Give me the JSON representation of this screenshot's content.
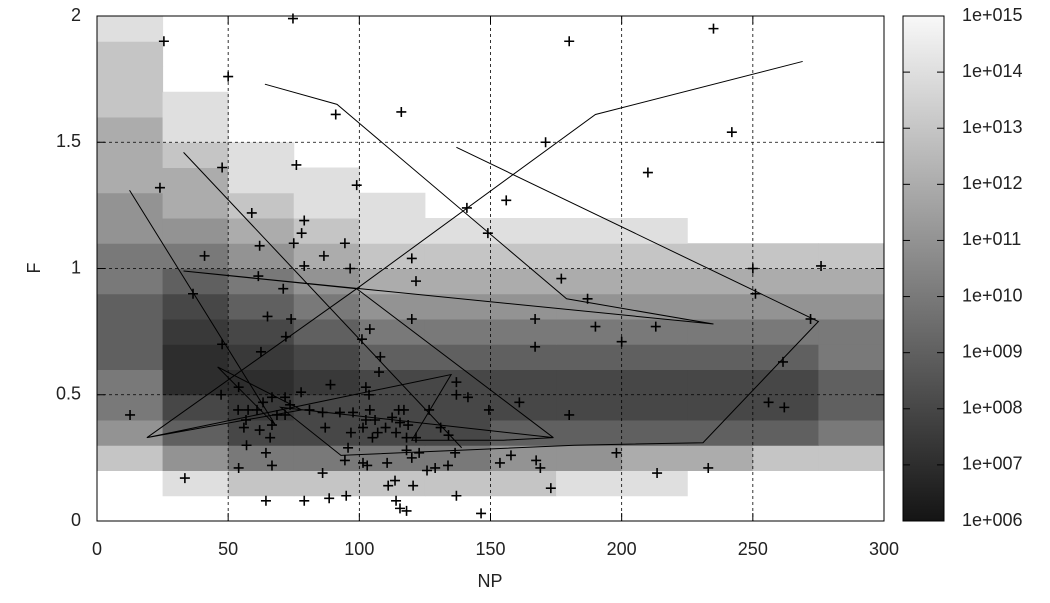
{
  "chart_data": {
    "type": "heatmap",
    "x_label": "NP",
    "y_label": "F",
    "xlim": [
      0,
      300
    ],
    "ylim": [
      0,
      2
    ],
    "xticks": [
      0,
      50,
      100,
      150,
      200,
      250,
      300
    ],
    "yticks": [
      0,
      0.5,
      1,
      1.5,
      2
    ],
    "grid": true,
    "log_color_scale": true,
    "cblim": [
      1000000.0,
      1000000000000000.0
    ],
    "cbticks": [
      {
        "value": 1000000.0,
        "label": "1e+006"
      },
      {
        "value": 10000000.0,
        "label": "1e+007"
      },
      {
        "value": 100000000.0,
        "label": "1e+008"
      },
      {
        "value": 1000000000.0,
        "label": "1e+009"
      },
      {
        "value": 10000000000.0,
        "label": "1e+010"
      },
      {
        "value": 100000000000.0,
        "label": "1e+011"
      },
      {
        "value": 1000000000000.0,
        "label": "1e+012"
      },
      {
        "value": 10000000000000.0,
        "label": "1e+013"
      },
      {
        "value": 100000000000000.0,
        "label": "1e+014"
      },
      {
        "value": 1000000000000000.0,
        "label": "1e+015"
      }
    ],
    "xbins": [
      0,
      25,
      50,
      75,
      100,
      125,
      150,
      175,
      200,
      225,
      250,
      275,
      300
    ],
    "ybins": [
      0,
      0.1,
      0.2,
      0.3,
      0.4,
      0.5,
      0.6,
      0.7,
      0.8,
      0.9,
      1.0,
      1.1,
      1.2,
      1.3,
      1.4,
      1.5,
      1.6,
      1.7,
      1.8,
      1.9,
      2.0
    ],
    "z": [
      [
        null,
        null,
        null,
        null,
        null,
        null,
        null,
        null,
        null,
        null,
        null,
        null
      ],
      [
        null,
        100000000000000.0,
        10000000000000.0,
        10000000000000.0,
        10000000000000.0,
        10000000000000.0,
        10000000000000.0,
        100000000000000.0,
        100000000000000.0,
        null,
        null,
        null
      ],
      [
        10000000000000.0,
        100000000000.0,
        10000000000.0,
        10000000000.0,
        10000000000.0,
        10000000000.0,
        100000000000.0,
        100000000000.0,
        1000000000000.0,
        1000000000000.0,
        10000000000000.0,
        10000000000000.0
      ],
      [
        100000000000.0,
        1000000000.0,
        100000000.0,
        100000000.0,
        100000000.0,
        100000000.0,
        1000000000.0,
        1000000000.0,
        1000000000.0,
        1000000000.0,
        1000000000.0,
        10000000000.0
      ],
      [
        10000000000.0,
        100000000.0,
        30000000.0,
        100000000.0,
        100000000.0,
        100000000.0,
        100000000.0,
        100000000.0,
        100000000.0,
        100000000.0,
        100000000.0,
        1000000000.0
      ],
      [
        10000000000.0,
        10000000.0,
        10000000.0,
        30000000.0,
        100000000.0,
        100000000.0,
        100000000.0,
        100000000.0,
        100000000.0,
        100000000.0,
        100000000.0,
        1000000000.0
      ],
      [
        1000000000.0,
        10000000.0,
        30000000.0,
        100000000.0,
        1000000000.0,
        1000000000.0,
        1000000000.0,
        1000000000.0,
        1000000000.0,
        1000000000.0,
        1000000000.0,
        10000000000.0
      ],
      [
        1000000000.0,
        30000000.0,
        100000000.0,
        1000000000.0,
        10000000000.0,
        10000000000.0,
        10000000000.0,
        10000000000.0,
        10000000000.0,
        10000000000.0,
        10000000000.0,
        10000000000.0
      ],
      [
        1000000000.0,
        100000000.0,
        1000000000.0,
        10000000000.0,
        100000000000.0,
        100000000000.0,
        100000000000.0,
        100000000000.0,
        100000000000.0,
        100000000000.0,
        100000000000.0,
        100000000000.0
      ],
      [
        10000000000.0,
        1000000000.0,
        10000000000.0,
        100000000000.0,
        1000000000000.0,
        1000000000000.0,
        1000000000000.0,
        1000000000000.0,
        1000000000000.0,
        1000000000000.0,
        1000000000000.0,
        1000000000000.0
      ],
      [
        10000000000.0,
        10000000000.0,
        100000000000.0,
        1000000000000.0,
        10000000000000.0,
        10000000000000.0,
        10000000000000.0,
        10000000000000.0,
        10000000000000.0,
        10000000000000.0,
        10000000000000.0,
        10000000000000.0
      ],
      [
        100000000000.0,
        100000000000.0,
        1000000000000.0,
        10000000000000.0,
        100000000000000.0,
        100000000000000.0,
        100000000000000.0,
        100000000000000.0,
        100000000000000.0,
        null,
        null,
        null
      ],
      [
        100000000000.0,
        1000000000000.0,
        10000000000000.0,
        100000000000000.0,
        100000000000000.0,
        null,
        null,
        null,
        null,
        null,
        null,
        null
      ],
      [
        1000000000000.0,
        1000000000000.0,
        100000000000000.0,
        100000000000000.0,
        null,
        null,
        null,
        null,
        null,
        null,
        null,
        null
      ],
      [
        1000000000000.0,
        10000000000000.0,
        100000000000000.0,
        null,
        null,
        null,
        null,
        null,
        null,
        null,
        null,
        null
      ],
      [
        1000000000000.0,
        100000000000000.0,
        null,
        null,
        null,
        null,
        null,
        null,
        null,
        null,
        null,
        null
      ],
      [
        10000000000000.0,
        100000000000000.0,
        null,
        null,
        null,
        null,
        null,
        null,
        null,
        null,
        null,
        null
      ],
      [
        10000000000000.0,
        null,
        null,
        null,
        null,
        null,
        null,
        null,
        null,
        null,
        null,
        null
      ],
      [
        10000000000000.0,
        null,
        null,
        null,
        null,
        null,
        null,
        null,
        null,
        null,
        null,
        null
      ],
      [
        100000000000000.0,
        null,
        null,
        null,
        null,
        null,
        null,
        null,
        null,
        null,
        null,
        null
      ]
    ],
    "overlays": [
      {
        "type": "scatter",
        "marker": "+",
        "color": "#000000",
        "x": [
          25.5,
          74.7,
          180,
          235,
          50,
          91,
          116,
          171,
          242,
          24,
          47.7,
          76,
          99,
          59,
          79,
          78,
          75,
          62,
          94.5,
          141,
          156,
          149,
          210,
          41,
          86.5,
          79,
          120,
          96.5,
          61.5,
          121.6,
          36.6,
          71,
          177,
          187,
          250,
          251,
          276,
          272,
          65,
          74,
          120,
          104,
          167,
          190,
          213,
          101,
          72,
          167,
          200,
          47.7,
          62.5,
          108,
          107.5,
          261.5,
          89,
          77.8,
          137,
          47.3,
          102.5,
          103.7,
          54,
          137,
          149.4,
          161,
          141.4,
          256,
          262,
          12.6,
          180,
          53.8,
          57.6,
          61,
          56.8,
          56,
          63.3,
          66.7,
          71.7,
          73.6,
          68.6,
          66.7,
          62,
          71.7,
          81,
          86,
          92.6,
          97.6,
          87,
          96.8,
          101.4,
          104,
          102.5,
          106,
          107,
          105,
          110,
          112.5,
          115,
          117,
          115.5,
          114,
          118.6,
          118,
          121.6,
          118,
          126.6,
          131,
          134,
          136.5,
          122.8,
          95.7,
          66,
          64.4,
          66.7,
          54,
          57,
          86,
          94.5,
          101.4,
          103,
          110.6,
          120,
          125.8,
          128.9,
          133.8,
          153.6,
          157.8,
          167.4,
          169,
          198,
          233,
          213.5,
          173,
          33.5,
          64.4,
          79,
          88.5,
          95,
          111,
          113.6,
          114,
          115.5,
          118,
          120.5,
          137,
          146.4
        ],
        "y": [
          1.9,
          1.99,
          1.9,
          1.95,
          1.76,
          1.61,
          1.62,
          1.5,
          1.54,
          1.32,
          1.4,
          1.41,
          1.33,
          1.22,
          1.19,
          1.14,
          1.1,
          1.09,
          1.1,
          1.24,
          1.27,
          1.14,
          1.38,
          1.05,
          1.05,
          1.01,
          1.04,
          1.0,
          0.97,
          0.95,
          0.9,
          0.92,
          0.96,
          0.88,
          1.0,
          0.9,
          1.01,
          0.8,
          0.81,
          0.8,
          0.8,
          0.76,
          0.8,
          0.77,
          0.77,
          0.72,
          0.73,
          0.69,
          0.71,
          0.7,
          0.67,
          0.65,
          0.59,
          0.63,
          0.54,
          0.51,
          0.55,
          0.5,
          0.53,
          0.5,
          0.53,
          0.5,
          0.44,
          0.47,
          0.49,
          0.47,
          0.45,
          0.42,
          0.42,
          0.44,
          0.44,
          0.44,
          0.4,
          0.37,
          0.47,
          0.49,
          0.49,
          0.46,
          0.42,
          0.38,
          0.36,
          0.42,
          0.44,
          0.43,
          0.43,
          0.43,
          0.37,
          0.35,
          0.37,
          0.44,
          0.4,
          0.4,
          0.35,
          0.33,
          0.37,
          0.41,
          0.44,
          0.44,
          0.39,
          0.35,
          0.38,
          0.33,
          0.33,
          0.28,
          0.44,
          0.37,
          0.34,
          0.27,
          0.27,
          0.29,
          0.33,
          0.27,
          0.22,
          0.21,
          0.3,
          0.19,
          0.24,
          0.23,
          0.22,
          0.23,
          0.25,
          0.2,
          0.21,
          0.22,
          0.23,
          0.26,
          0.24,
          0.21,
          0.27,
          0.21,
          0.19,
          0.13,
          0.17,
          0.08,
          0.08,
          0.09,
          0.1,
          0.14,
          0.16,
          0.08,
          0.05,
          0.04,
          0.14,
          0.1,
          0.03
        ]
      },
      {
        "type": "line",
        "color": "#000000",
        "x": [
          64,
          91.5,
          179,
          235,
          33,
          99,
          174,
          null,
          33,
          139,
          null,
          12.4,
          68,
          46,
          78,
          19,
          135,
          120,
          155,
          174,
          70,
          93,
          182,
          231,
          275,
          137,
          null,
          269,
          190,
          99,
          19
        ],
        "y": [
          1.73,
          1.65,
          0.88,
          0.78,
          0.99,
          0.92,
          0.33,
          null,
          1.46,
          0.29,
          null,
          1.31,
          0.38,
          0.61,
          0.44,
          0.33,
          0.58,
          0.32,
          0.32,
          0.33,
          0.45,
          0.26,
          0.3,
          0.31,
          0.79,
          1.48,
          null,
          1.82,
          1.61,
          0.92,
          0.33
        ]
      }
    ]
  }
}
